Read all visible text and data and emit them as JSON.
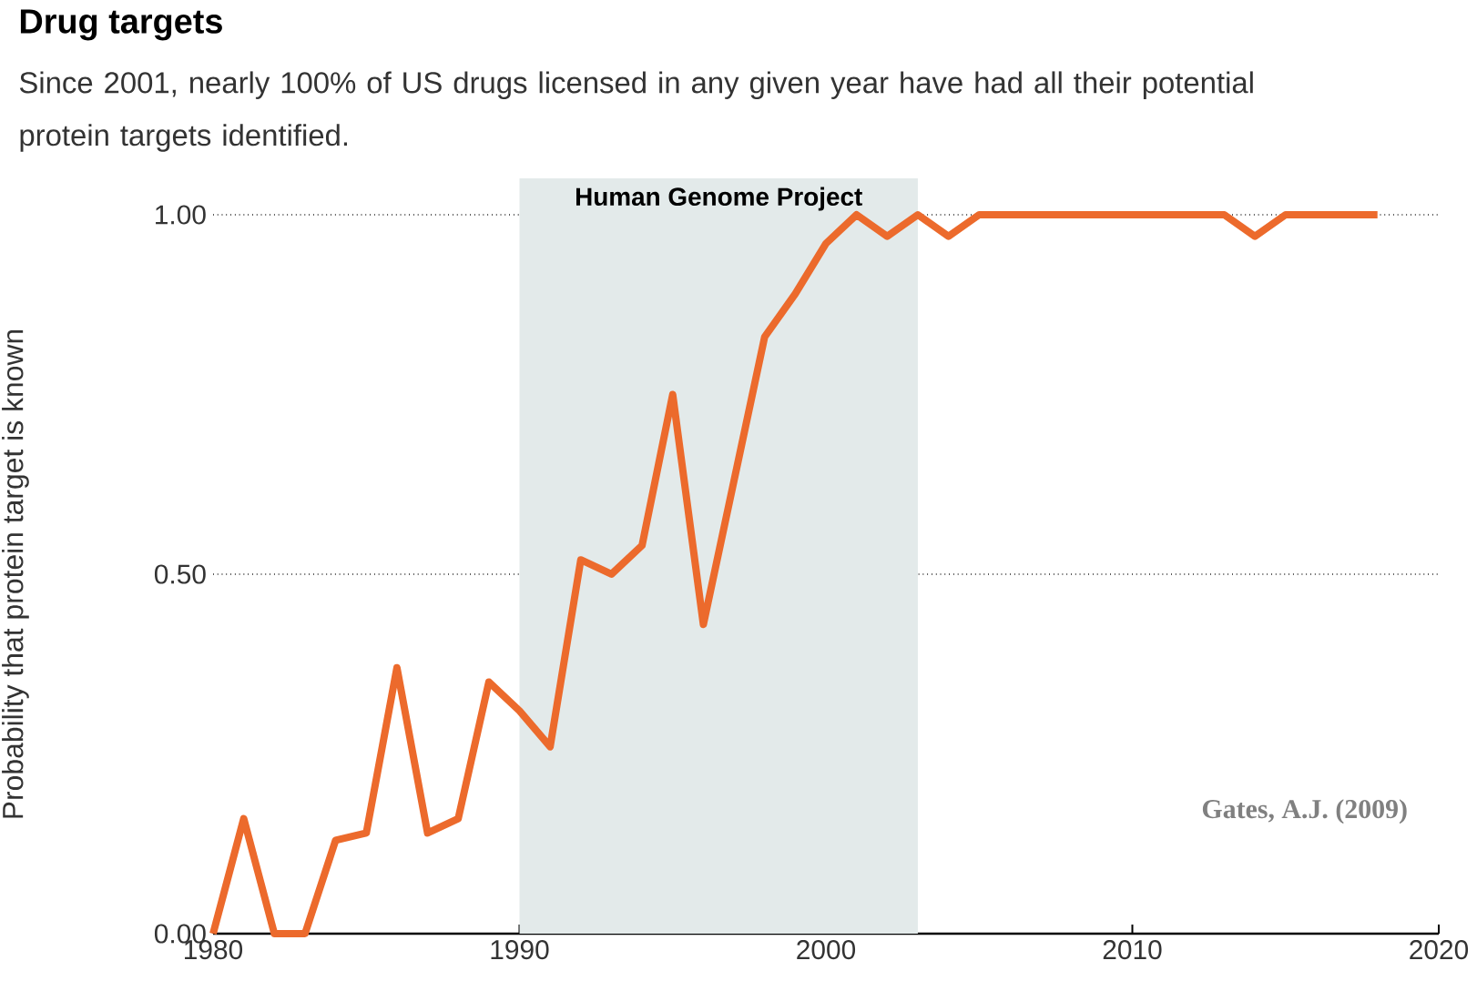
{
  "chart_data": {
    "type": "line",
    "title": "Drug targets",
    "subtitle": "Since 2001, nearly 100% of US drugs licensed in any given year have had all their potential protein targets identified.",
    "ylabel": "Probability that protein target is known",
    "x": [
      1980,
      1981,
      1982,
      1983,
      1984,
      1985,
      1986,
      1987,
      1988,
      1989,
      1990,
      1991,
      1992,
      1993,
      1994,
      1995,
      1996,
      1997,
      1998,
      1999,
      2000,
      2001,
      2002,
      2003,
      2004,
      2005,
      2006,
      2007,
      2008,
      2009,
      2010,
      2011,
      2012,
      2013,
      2014,
      2015,
      2016,
      2017,
      2018
    ],
    "series": [
      {
        "color": "#ec6a2c",
        "values": [
          0,
          0.16,
          0,
          0,
          0.13,
          0.14,
          0.37,
          0.14,
          0.16,
          0.35,
          0.31,
          0.26,
          0.52,
          0.5,
          0.54,
          0.75,
          0.43,
          0.63,
          0.83,
          0.89,
          0.96,
          1.0,
          0.97,
          1.0,
          0.97,
          1.0,
          1.0,
          1.0,
          1.0,
          1.0,
          1.0,
          1.0,
          1.0,
          1.0,
          0.97,
          1.0,
          1.0,
          1.0,
          1.0
        ]
      }
    ],
    "xlim": [
      1980,
      2020
    ],
    "xticks": [
      1980,
      1990,
      2000,
      2010,
      2020
    ],
    "ylim": [
      0,
      1
    ],
    "yticks": [
      {
        "value": 0,
        "label": "0.00"
      },
      {
        "value": 0.5,
        "label": "0.50"
      },
      {
        "value": 1,
        "label": "1.00"
      }
    ],
    "grid": "y",
    "marker": "none",
    "line_style": "solid",
    "bands": [
      {
        "axis": "x",
        "from": 1990,
        "to": 2003,
        "label": "Human Genome Project",
        "color": "#e3eaea"
      }
    ],
    "annotations": [
      "Gates, A.J. (2009)"
    ]
  }
}
